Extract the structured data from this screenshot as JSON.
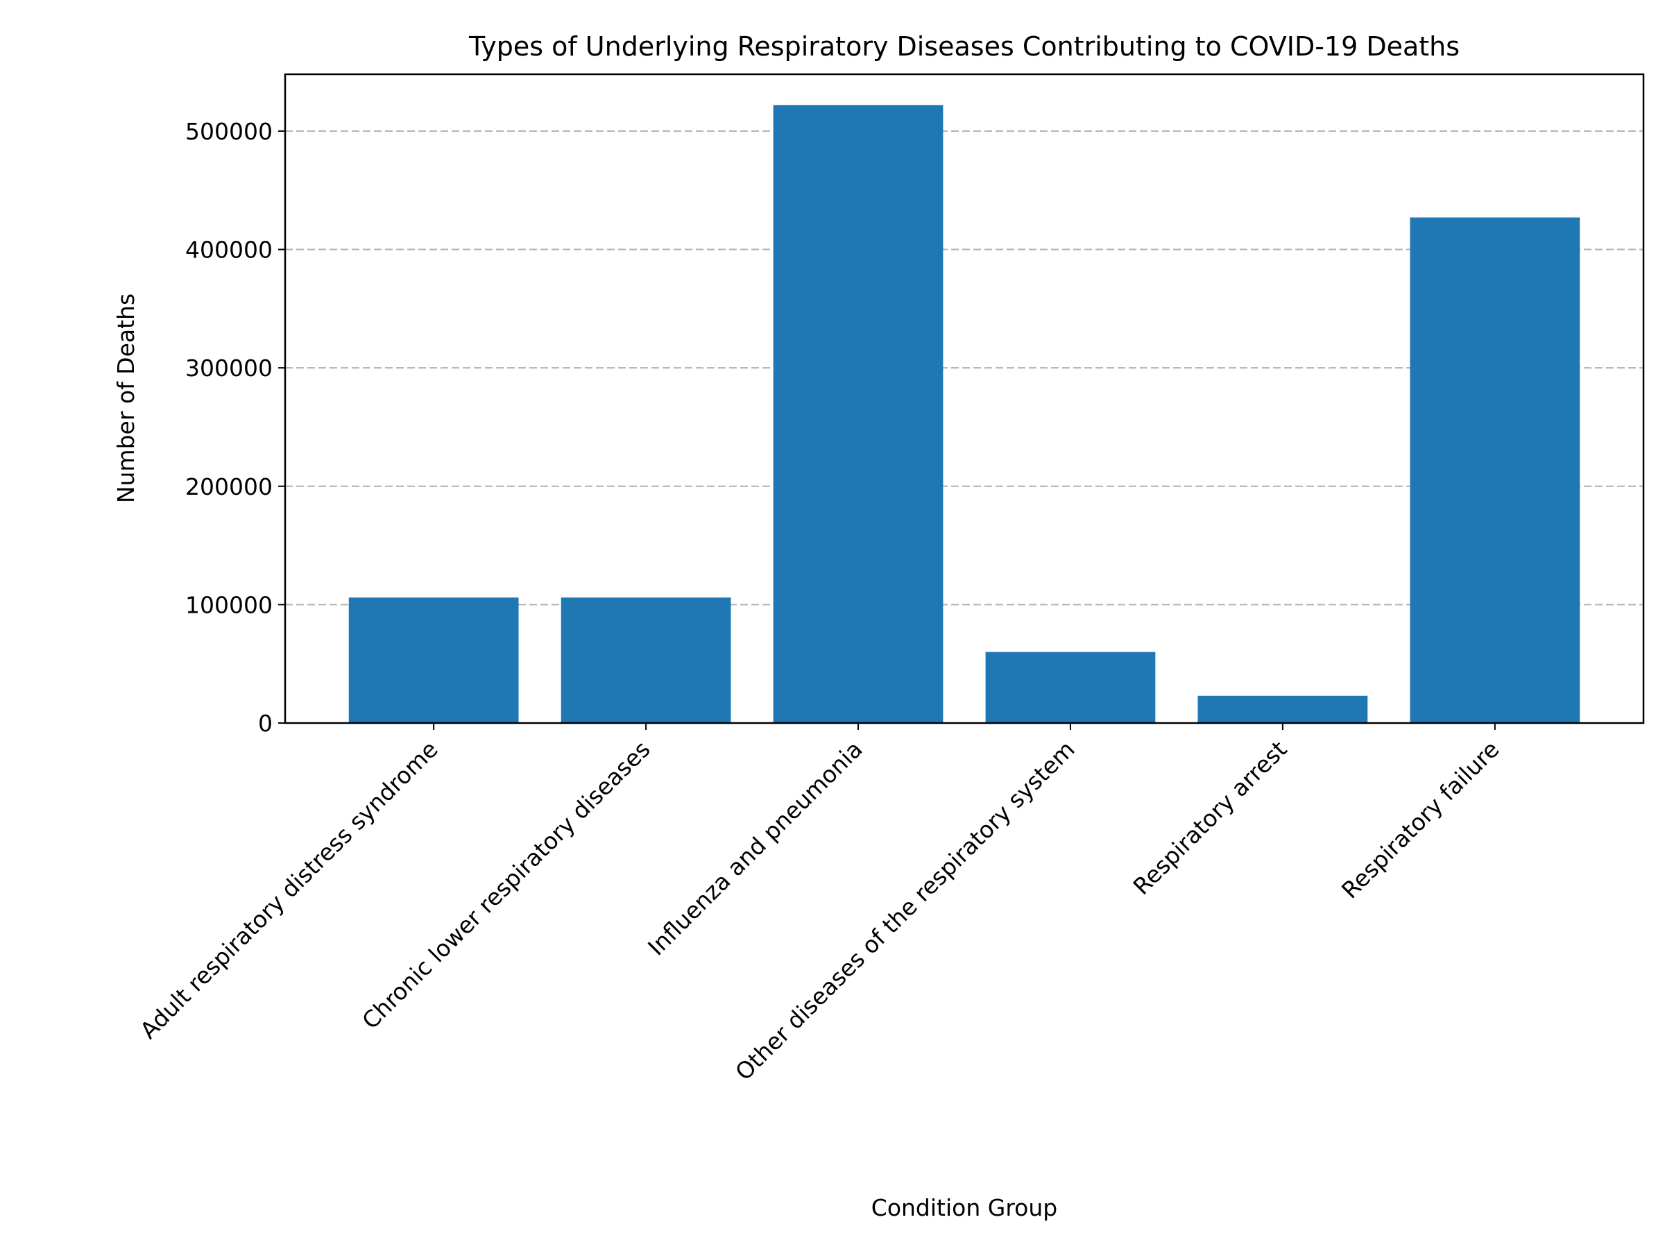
{
  "chart_data": {
    "type": "bar",
    "title": "Types of Underlying Respiratory Diseases Contributing to COVID-19 Deaths",
    "xlabel": "Condition Group",
    "ylabel": "Number of Deaths",
    "categories": [
      "Adult respiratory distress syndrome",
      "Chronic lower respiratory diseases",
      "Influenza and pneumonia",
      "Other diseases of the respiratory system",
      "Respiratory arrest",
      "Respiratory failure"
    ],
    "values": [
      106000,
      106000,
      522000,
      60000,
      23000,
      427000
    ],
    "ylim": [
      0,
      548000
    ],
    "yticks": [
      0,
      100000,
      200000,
      300000,
      400000,
      500000
    ],
    "grid": "y-dashed",
    "bar_color": "#1f77b4"
  }
}
